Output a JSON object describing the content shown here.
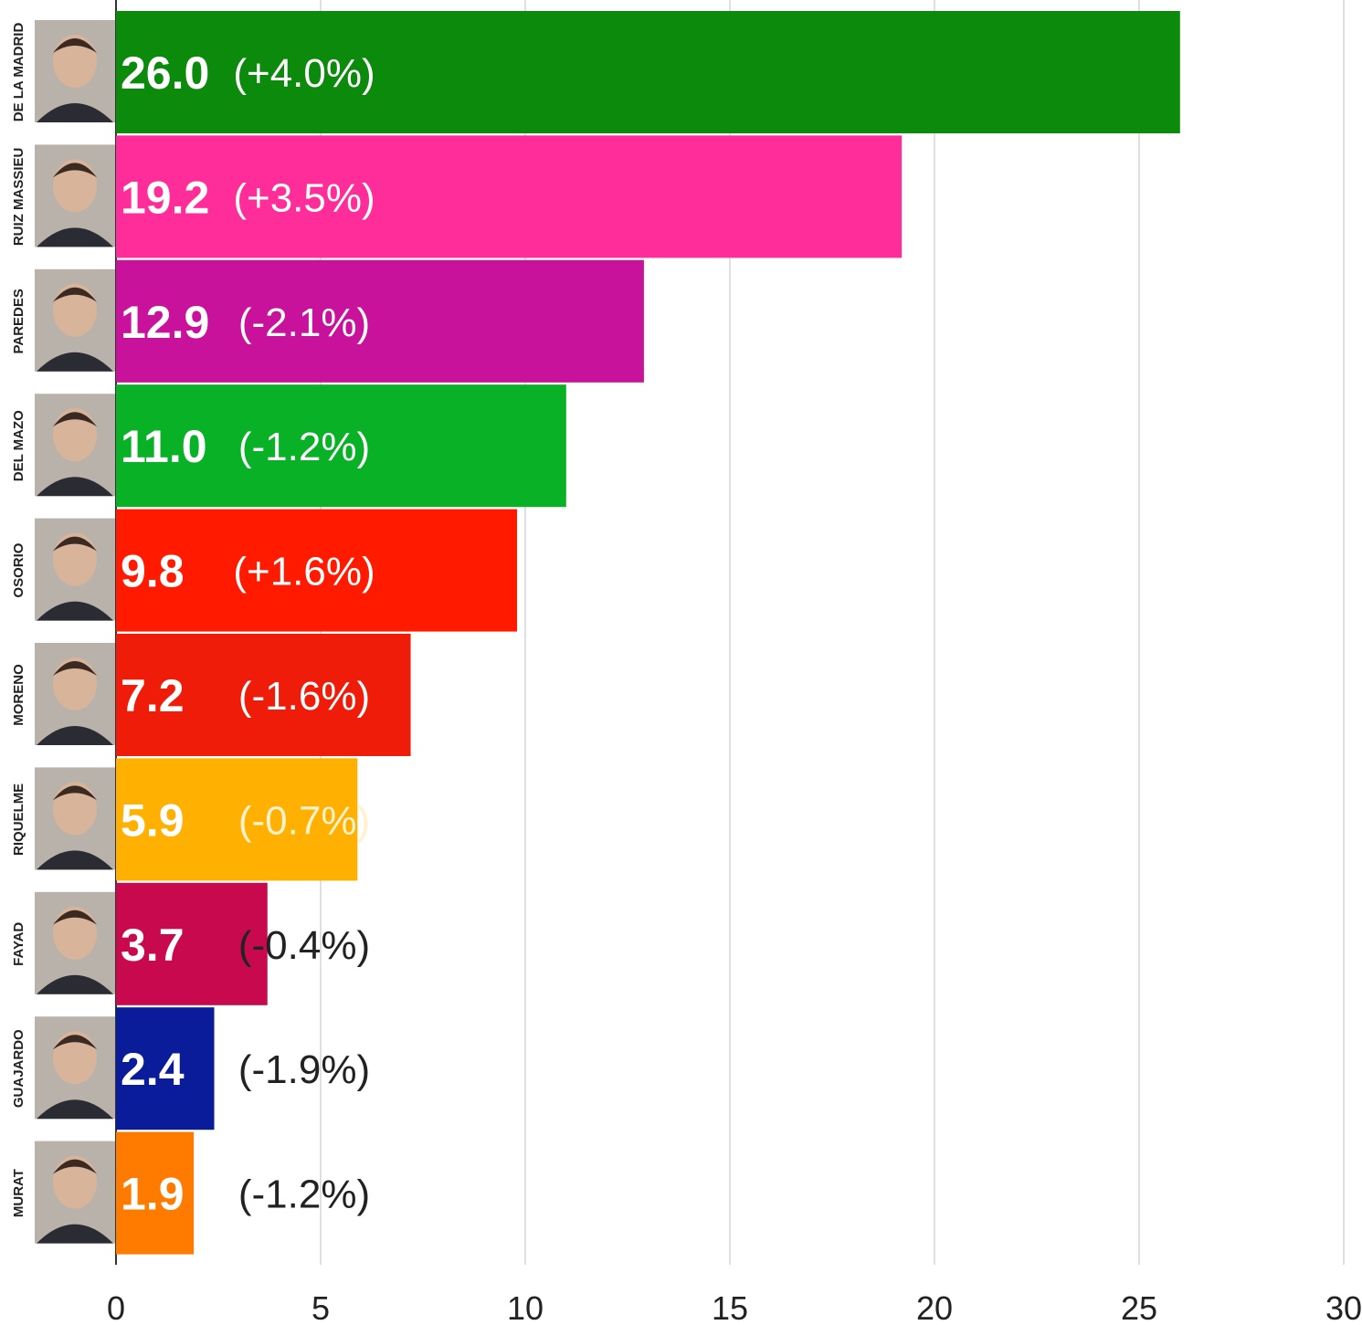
{
  "chart_data": {
    "type": "bar",
    "orientation": "horizontal",
    "categories": [
      "DE LA MADRID",
      "RUIZ MASSIEU",
      "PAREDES",
      "DEL MAZO",
      "OSORIO",
      "MORENO",
      "RIQUELME",
      "FAYAD",
      "GUAJARDO",
      "MURAT"
    ],
    "values": [
      26.0,
      19.2,
      12.9,
      11.0,
      9.8,
      7.2,
      5.9,
      3.7,
      2.4,
      1.9
    ],
    "value_labels": [
      "26.0",
      "19.2",
      "12.9",
      "11.0",
      "9.8",
      "7.2",
      "5.9",
      "3.7",
      "2.4",
      "1.9"
    ],
    "change_labels": [
      "(+4.0%)",
      "(+3.5%)",
      "(-2.1%)",
      "(-1.2%)",
      "(+1.6%)",
      "(-1.6%)",
      "(-0.7%)",
      "(-0.4%)",
      "(-1.9%)",
      "(-1.2%)"
    ],
    "colors": [
      "#0b8a0b",
      "#ff2d9a",
      "#c8129b",
      "#09b126",
      "#ff1a00",
      "#ef1c0a",
      "#ffb000",
      "#c8094e",
      "#0a1c99",
      "#ff7b00"
    ],
    "change_label_colors": [
      "#ffffff",
      "#ffffff",
      "#ffffff",
      "#ffffff",
      "#ffffff",
      "#ffffff",
      "#fff2cc",
      "#222222",
      "#222222",
      "#222222"
    ],
    "x_ticks": [
      0,
      5,
      10,
      15,
      20,
      25,
      30
    ],
    "xlim": [
      0,
      30
    ],
    "grid": true,
    "photos": true
  }
}
